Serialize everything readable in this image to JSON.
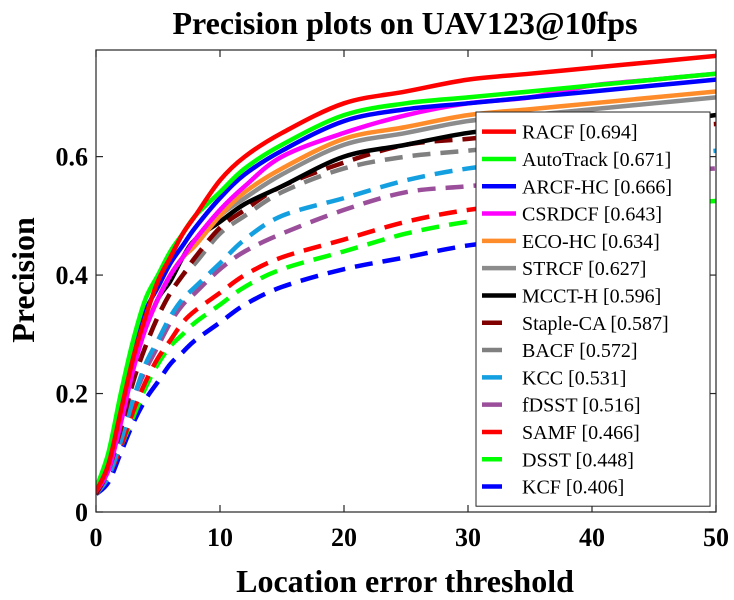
{
  "chart_data": {
    "type": "line",
    "title": "Precision plots on UAV123@10fps",
    "xlabel": "Location error threshold",
    "ylabel": "Precision",
    "xlim": [
      0,
      50
    ],
    "ylim": [
      0,
      0.78
    ],
    "xticks": [
      "0",
      "10",
      "20",
      "30",
      "40",
      "50"
    ],
    "yticks": [
      "0",
      "0.2",
      "0.4",
      "0.6"
    ],
    "grid": false,
    "legend_position": "bottom-right",
    "x": [
      0,
      1,
      2,
      3,
      4,
      5,
      6,
      7,
      8,
      10,
      12,
      15,
      20,
      25,
      30,
      35,
      40,
      45,
      50
    ],
    "series": [
      {
        "name": "RACF [0.694]",
        "color": "#ff0000",
        "style": "solid",
        "values": [
          0.035,
          0.08,
          0.17,
          0.26,
          0.33,
          0.39,
          0.43,
          0.47,
          0.5,
          0.56,
          0.6,
          0.64,
          0.69,
          0.71,
          0.73,
          0.74,
          0.75,
          0.76,
          0.77
        ]
      },
      {
        "name": "AutoTrack [0.671]",
        "color": "#00ff00",
        "style": "solid",
        "values": [
          0.04,
          0.1,
          0.2,
          0.29,
          0.36,
          0.4,
          0.44,
          0.47,
          0.5,
          0.54,
          0.58,
          0.62,
          0.67,
          0.69,
          0.7,
          0.71,
          0.72,
          0.73,
          0.74
        ]
      },
      {
        "name": "ARCF-HC [0.666]",
        "color": "#0000ff",
        "style": "solid",
        "values": [
          0.04,
          0.09,
          0.19,
          0.28,
          0.34,
          0.38,
          0.42,
          0.45,
          0.48,
          0.53,
          0.57,
          0.61,
          0.66,
          0.68,
          0.69,
          0.7,
          0.71,
          0.72,
          0.73
        ]
      },
      {
        "name": "CSRDCF [0.643]",
        "color": "#ff00ff",
        "style": "solid",
        "values": [
          0.035,
          0.07,
          0.15,
          0.24,
          0.31,
          0.36,
          0.4,
          0.43,
          0.46,
          0.51,
          0.55,
          0.6,
          0.64,
          0.67,
          0.69,
          0.7,
          0.72,
          0.73,
          0.74
        ]
      },
      {
        "name": "ECO-HC [0.634]",
        "color": "#ff8c2a",
        "style": "solid",
        "values": [
          0.035,
          0.08,
          0.16,
          0.25,
          0.31,
          0.36,
          0.4,
          0.43,
          0.45,
          0.5,
          0.54,
          0.58,
          0.63,
          0.65,
          0.67,
          0.68,
          0.69,
          0.7,
          0.71
        ]
      },
      {
        "name": "STRCF [0.627]",
        "color": "#8c8c8c",
        "style": "solid",
        "values": [
          0.035,
          0.08,
          0.16,
          0.25,
          0.31,
          0.36,
          0.4,
          0.43,
          0.45,
          0.5,
          0.53,
          0.57,
          0.62,
          0.64,
          0.66,
          0.67,
          0.68,
          0.69,
          0.7
        ]
      },
      {
        "name": "MCCT-H [0.596]",
        "color": "#000000",
        "style": "solid",
        "values": [
          0.035,
          0.08,
          0.16,
          0.25,
          0.31,
          0.36,
          0.39,
          0.43,
          0.46,
          0.49,
          0.52,
          0.55,
          0.6,
          0.62,
          0.64,
          0.65,
          0.66,
          0.66,
          0.67
        ]
      },
      {
        "name": "Staple-CA [0.587]",
        "color": "#800000",
        "style": "dashed",
        "values": [
          0.03,
          0.07,
          0.14,
          0.22,
          0.28,
          0.33,
          0.37,
          0.4,
          0.43,
          0.48,
          0.51,
          0.55,
          0.59,
          0.62,
          0.63,
          0.64,
          0.65,
          0.65,
          0.655
        ]
      },
      {
        "name": "BACF [0.572]",
        "color": "#808080",
        "style": "dashed",
        "values": [
          0.03,
          0.07,
          0.14,
          0.22,
          0.28,
          0.33,
          0.37,
          0.4,
          0.42,
          0.47,
          0.5,
          0.54,
          0.58,
          0.6,
          0.61,
          0.62,
          0.625,
          0.63,
          0.635
        ]
      },
      {
        "name": "KCC [0.531]",
        "color": "#14a0e0",
        "style": "dashed",
        "values": [
          0.03,
          0.06,
          0.12,
          0.19,
          0.25,
          0.29,
          0.33,
          0.36,
          0.38,
          0.42,
          0.46,
          0.5,
          0.53,
          0.56,
          0.58,
          0.59,
          0.6,
          0.6,
          0.61
        ]
      },
      {
        "name": "fDSST [0.516]",
        "color": "#9b4f9b",
        "style": "dashed",
        "values": [
          0.03,
          0.06,
          0.12,
          0.19,
          0.24,
          0.28,
          0.32,
          0.35,
          0.37,
          0.41,
          0.44,
          0.47,
          0.51,
          0.54,
          0.55,
          0.56,
          0.57,
          0.575,
          0.58
        ]
      },
      {
        "name": "SAMF [0.466]",
        "color": "#ff0000",
        "style": "dashed",
        "values": [
          0.03,
          0.06,
          0.11,
          0.17,
          0.22,
          0.26,
          0.29,
          0.32,
          0.34,
          0.37,
          0.4,
          0.43,
          0.46,
          0.49,
          0.51,
          0.52,
          0.53,
          0.54,
          0.545
        ]
      },
      {
        "name": "DSST [0.448]",
        "color": "#00ff00",
        "style": "dashed",
        "values": [
          0.03,
          0.06,
          0.11,
          0.16,
          0.21,
          0.25,
          0.28,
          0.3,
          0.32,
          0.35,
          0.38,
          0.41,
          0.44,
          0.47,
          0.49,
          0.5,
          0.51,
          0.52,
          0.525
        ]
      },
      {
        "name": "KCF [0.406]",
        "color": "#0000ff",
        "style": "dashed",
        "values": [
          0.03,
          0.05,
          0.1,
          0.15,
          0.19,
          0.22,
          0.25,
          0.27,
          0.29,
          0.32,
          0.35,
          0.38,
          0.41,
          0.43,
          0.45,
          0.46,
          0.47,
          0.48,
          0.49
        ]
      }
    ]
  }
}
